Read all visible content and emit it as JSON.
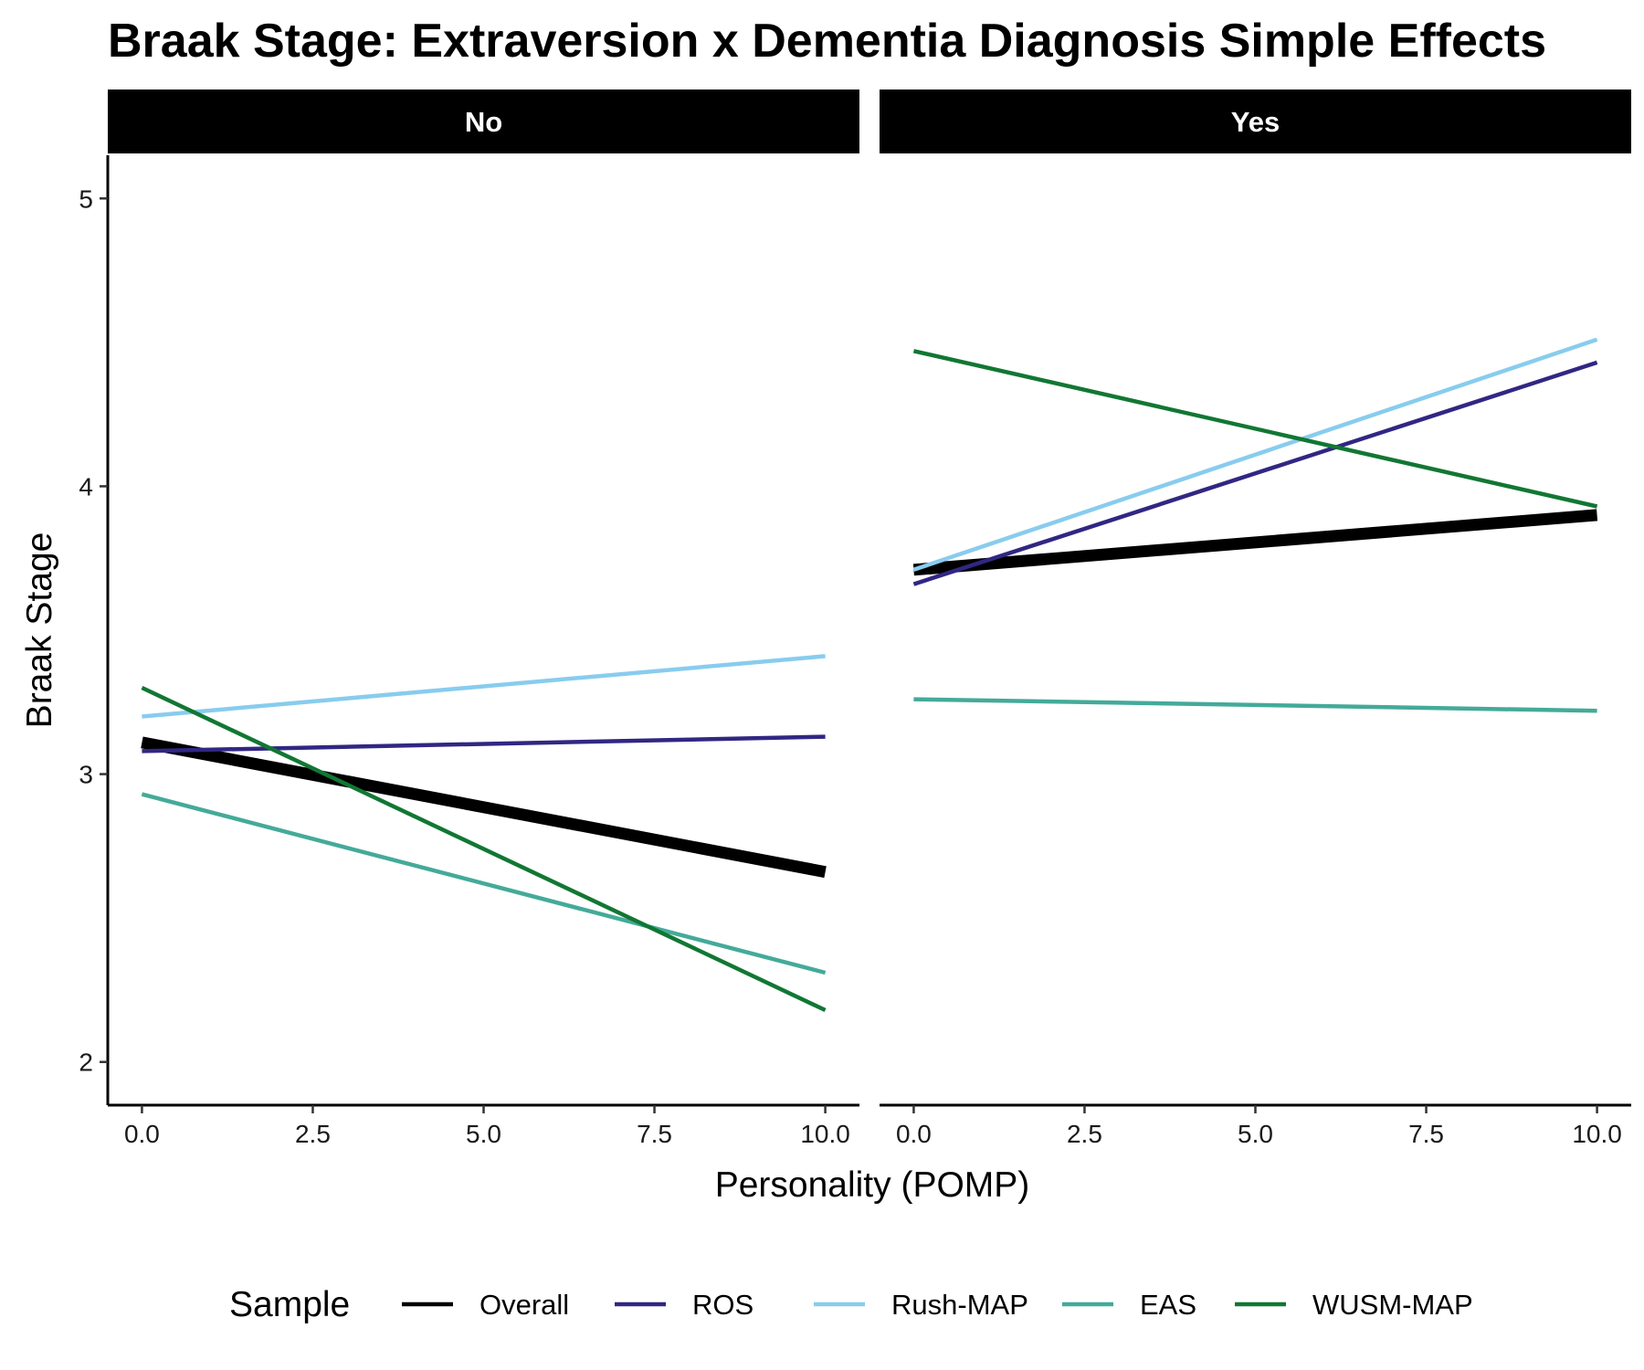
{
  "chart_data": {
    "type": "line",
    "title": "Braak Stage: Extraversion x Dementia Diagnosis Simple Effects",
    "xlabel": "Personality (POMP)",
    "ylabel": "Braak Stage",
    "xlim": [
      -0.5,
      10.5
    ],
    "ylim": [
      1.85,
      5.15
    ],
    "xticks": [
      0,
      2.5,
      5,
      7.5,
      10
    ],
    "xtick_labels": [
      "0.0",
      "2.5",
      "5.0",
      "7.5",
      "10.0"
    ],
    "yticks": [
      2,
      3,
      4,
      5
    ],
    "ytick_labels": [
      "2",
      "3",
      "4",
      "5"
    ],
    "grid": false,
    "legend": {
      "title": "Sample",
      "position": "bottom",
      "entries": [
        "Overall",
        "ROS",
        "Rush-MAP",
        "EAS",
        "WUSM-MAP"
      ]
    },
    "facets": [
      {
        "label": "No",
        "series": [
          {
            "name": "Overall",
            "color": "#000000",
            "thick": true,
            "x": [
              0,
              10
            ],
            "y": [
              3.11,
              2.66
            ]
          },
          {
            "name": "ROS",
            "color": "#312783",
            "thick": false,
            "x": [
              0,
              10
            ],
            "y": [
              3.08,
              3.13
            ]
          },
          {
            "name": "Rush-MAP",
            "color": "#88CCEE",
            "thick": false,
            "x": [
              0,
              10
            ],
            "y": [
              3.2,
              3.41
            ]
          },
          {
            "name": "EAS",
            "color": "#44AA99",
            "thick": false,
            "x": [
              0,
              10
            ],
            "y": [
              2.93,
              2.31
            ]
          },
          {
            "name": "WUSM-MAP",
            "color": "#117733",
            "thick": false,
            "x": [
              0,
              10
            ],
            "y": [
              3.3,
              2.18
            ]
          }
        ]
      },
      {
        "label": "Yes",
        "series": [
          {
            "name": "Overall",
            "color": "#000000",
            "thick": true,
            "x": [
              0,
              10
            ],
            "y": [
              3.71,
              3.9
            ]
          },
          {
            "name": "ROS",
            "color": "#312783",
            "thick": false,
            "x": [
              0,
              10
            ],
            "y": [
              3.66,
              4.43
            ]
          },
          {
            "name": "Rush-MAP",
            "color": "#88CCEE",
            "thick": false,
            "x": [
              0,
              10
            ],
            "y": [
              3.71,
              4.51
            ]
          },
          {
            "name": "EAS",
            "color": "#44AA99",
            "thick": false,
            "x": [
              0,
              10
            ],
            "y": [
              3.26,
              3.22
            ]
          },
          {
            "name": "WUSM-MAP",
            "color": "#117733",
            "thick": false,
            "x": [
              0,
              10
            ],
            "y": [
              4.47,
              3.93
            ]
          }
        ]
      }
    ]
  }
}
